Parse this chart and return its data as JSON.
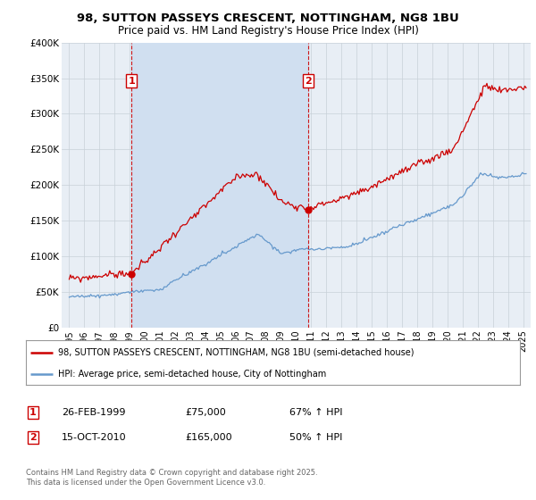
{
  "title1": "98, SUTTON PASSEYS CRESCENT, NOTTINGHAM, NG8 1BU",
  "title2": "Price paid vs. HM Land Registry's House Price Index (HPI)",
  "legend_label_red": "98, SUTTON PASSEYS CRESCENT, NOTTINGHAM, NG8 1BU (semi-detached house)",
  "legend_label_blue": "HPI: Average price, semi-detached house, City of Nottingham",
  "footer": "Contains HM Land Registry data © Crown copyright and database right 2025.\nThis data is licensed under the Open Government Licence v3.0.",
  "annotation1_label": "1",
  "annotation1_date": "26-FEB-1999",
  "annotation1_price": "£75,000",
  "annotation1_hpi": "67% ↑ HPI",
  "annotation2_label": "2",
  "annotation2_date": "15-OCT-2010",
  "annotation2_price": "£165,000",
  "annotation2_hpi": "50% ↑ HPI",
  "vline1_x": 1999.12,
  "vline2_x": 2010.79,
  "marker1_x": 1999.12,
  "marker1_y": 75000,
  "marker2_x": 2010.79,
  "marker2_y": 165000,
  "red_color": "#cc0000",
  "blue_color": "#6699cc",
  "bg_color": "#e8eef5",
  "fill_color": "#d0dff0",
  "grid_color": "#c8d0d8",
  "ylim": [
    0,
    400000
  ],
  "xlim": [
    1994.5,
    2025.5
  ],
  "yticks": [
    0,
    50000,
    100000,
    150000,
    200000,
    250000,
    300000,
    350000,
    400000
  ],
  "yticklabels": [
    "£0",
    "£50K",
    "£100K",
    "£150K",
    "£200K",
    "£250K",
    "£300K",
    "£350K",
    "£400K"
  ]
}
